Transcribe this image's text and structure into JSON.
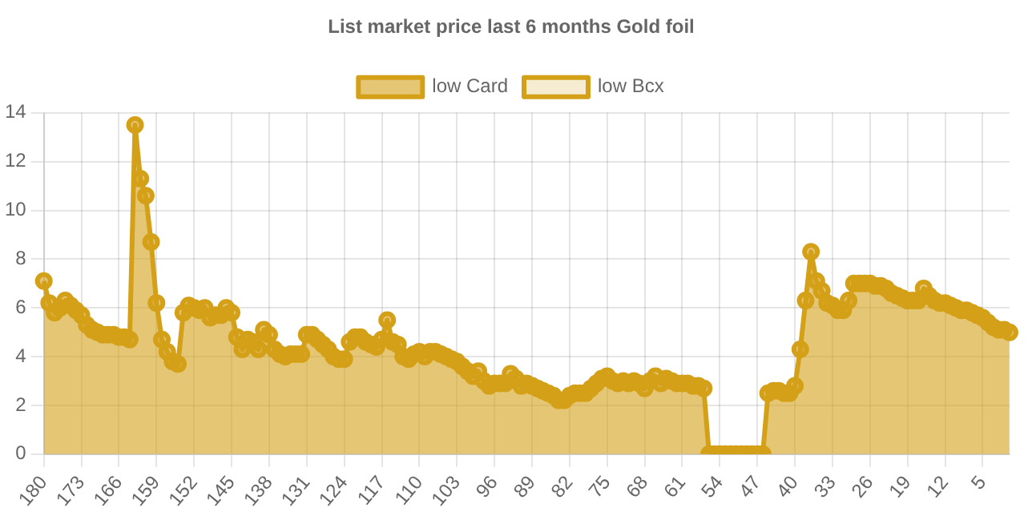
{
  "chart_data": {
    "type": "area",
    "title": "List market price last 6 months Gold foil",
    "categories": [
      "180",
      null,
      null,
      null,
      null,
      null,
      null,
      "173",
      null,
      null,
      null,
      null,
      null,
      null,
      "166",
      null,
      null,
      null,
      null,
      null,
      null,
      "159",
      null,
      null,
      null,
      null,
      null,
      null,
      "152",
      null,
      null,
      null,
      null,
      null,
      null,
      "145",
      null,
      null,
      null,
      null,
      null,
      null,
      "138",
      null,
      null,
      null,
      null,
      null,
      null,
      "131",
      null,
      null,
      null,
      null,
      null,
      null,
      "124",
      null,
      null,
      null,
      null,
      null,
      null,
      "117",
      null,
      null,
      null,
      null,
      null,
      null,
      "110",
      null,
      null,
      null,
      null,
      null,
      null,
      "103",
      null,
      null,
      null,
      null,
      null,
      null,
      "96",
      null,
      null,
      null,
      null,
      null,
      null,
      "89",
      null,
      null,
      null,
      null,
      null,
      null,
      "82",
      null,
      null,
      null,
      null,
      null,
      null,
      "75",
      null,
      null,
      null,
      null,
      null,
      null,
      "68",
      null,
      null,
      null,
      null,
      null,
      null,
      "61",
      null,
      null,
      null,
      null,
      null,
      null,
      "54",
      null,
      null,
      null,
      null,
      null,
      null,
      "47",
      null,
      null,
      null,
      null,
      null,
      null,
      "40",
      null,
      null,
      null,
      null,
      null,
      null,
      "33",
      null,
      null,
      null,
      null,
      null,
      null,
      "26",
      null,
      null,
      null,
      null,
      null,
      null,
      "19",
      null,
      null,
      null,
      null,
      null,
      null,
      "12",
      null,
      null,
      null,
      null,
      null,
      null,
      "5",
      null,
      null,
      null,
      null,
      null
    ],
    "series": [
      {
        "name": "low Card",
        "color": "#d4a017",
        "values": [
          7.1,
          6.2,
          5.8,
          6.0,
          6.3,
          6.1,
          5.9,
          5.7,
          5.3,
          5.1,
          5.0,
          4.9,
          4.9,
          4.9,
          4.8,
          4.8,
          4.7,
          13.5,
          11.3,
          10.6,
          8.7,
          6.2,
          4.7,
          4.2,
          3.8,
          3.7,
          5.8,
          6.1,
          6.0,
          5.9,
          6.0,
          5.6,
          5.7,
          5.7,
          6.0,
          5.8,
          4.8,
          4.3,
          4.7,
          4.6,
          4.3,
          5.1,
          4.9,
          4.3,
          4.1,
          4.0,
          4.1,
          4.1,
          4.1,
          4.9,
          4.9,
          4.7,
          4.5,
          4.3,
          4.0,
          3.9,
          3.9,
          4.6,
          4.8,
          4.8,
          4.6,
          4.5,
          4.4,
          4.7,
          5.5,
          4.6,
          4.5,
          4.0,
          3.9,
          4.1,
          4.2,
          4.0,
          4.2,
          4.2,
          4.1,
          4.0,
          3.9,
          3.8,
          3.6,
          3.4,
          3.2,
          3.4,
          3.0,
          2.8,
          2.9,
          2.9,
          2.9,
          3.3,
          3.1,
          2.8,
          2.9,
          2.8,
          2.7,
          2.6,
          2.5,
          2.4,
          2.2,
          2.2,
          2.4,
          2.5,
          2.5,
          2.5,
          2.7,
          2.9,
          3.1,
          3.2,
          3.0,
          2.9,
          3.0,
          2.9,
          3.0,
          2.9,
          2.7,
          3.0,
          3.2,
          2.9,
          3.1,
          3.0,
          2.9,
          2.9,
          2.9,
          2.8,
          2.8,
          2.7,
          0,
          0,
          0,
          0,
          0,
          0,
          0,
          0,
          0,
          0,
          0,
          2.5,
          2.6,
          2.6,
          2.5,
          2.5,
          2.8,
          4.3,
          6.3,
          8.3,
          7.1,
          6.7,
          6.2,
          6.1,
          5.9,
          5.9,
          6.3,
          7.0,
          7.0,
          7.0,
          7.0,
          6.9,
          6.9,
          6.8,
          6.6,
          6.5,
          6.4,
          6.3,
          6.3,
          6.3,
          6.8,
          6.5,
          6.3,
          6.2,
          6.2,
          6.1,
          6.0,
          5.9,
          5.9,
          5.8,
          5.7,
          5.6,
          5.4,
          5.2,
          5.1,
          5.1,
          5.0
        ]
      },
      {
        "name": "low Bcx",
        "color": "#d4a017",
        "values": [
          null,
          null,
          null,
          null,
          null,
          null,
          null,
          null,
          null,
          null,
          null,
          null,
          null,
          null,
          null,
          null,
          null,
          null,
          null,
          null,
          null,
          null,
          null,
          null,
          null,
          null,
          null,
          null,
          null,
          null,
          null,
          null,
          null,
          null,
          null,
          null,
          null,
          null,
          null,
          null,
          null,
          null,
          null,
          null,
          null,
          null,
          null,
          null,
          null,
          null,
          null,
          null,
          null,
          null,
          null,
          null,
          null,
          null,
          null,
          null,
          null,
          null,
          null,
          null,
          null,
          null,
          null,
          null,
          null,
          null,
          null,
          null,
          null,
          null,
          null,
          null,
          null,
          null,
          null,
          null,
          null,
          null,
          null,
          null,
          null,
          null,
          null,
          null,
          null,
          null,
          null,
          null,
          null,
          null,
          null,
          null,
          null,
          null,
          null,
          null,
          null,
          null,
          null,
          null,
          null,
          null,
          null,
          null,
          null,
          null,
          null,
          null,
          null,
          null,
          null,
          null,
          null,
          null,
          null,
          null,
          null,
          null,
          null,
          null,
          null,
          null,
          null,
          null,
          null,
          null,
          null,
          null,
          null,
          null,
          null,
          null,
          null,
          null,
          null,
          null,
          null,
          null,
          null,
          null,
          null,
          null,
          null,
          null,
          null,
          null,
          null,
          null,
          null,
          null,
          null,
          null,
          null,
          null,
          null,
          null,
          null,
          null,
          null,
          null,
          null,
          null,
          null,
          null,
          null,
          null,
          null,
          null,
          null,
          null,
          null,
          null,
          null,
          null,
          null,
          null,
          null
        ]
      }
    ],
    "ylim": [
      0,
      14
    ],
    "yticks": [
      0,
      2,
      4,
      6,
      8,
      10,
      12,
      14
    ],
    "grid": true,
    "legend": "top",
    "marker": "circle"
  }
}
